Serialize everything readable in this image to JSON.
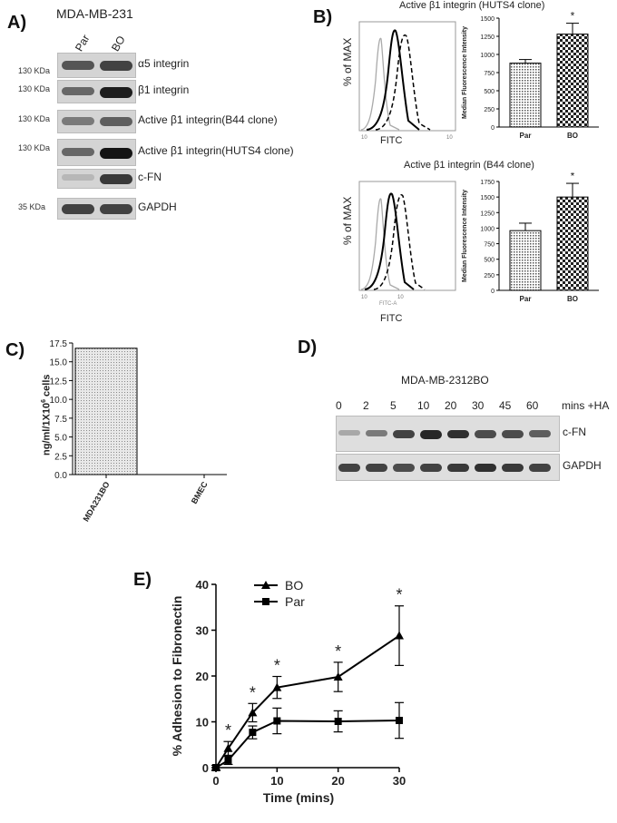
{
  "panel_labels": {
    "a": "A)",
    "b": "B)",
    "c": "C)",
    "d": "D)",
    "e": "E)"
  },
  "panel_a": {
    "cell_line": "MDA-MB-231",
    "lanes": [
      "Par",
      "BO"
    ],
    "rows": [
      {
        "marker": "130 KDa",
        "label": "α5 integrin",
        "bands": [
          0.65,
          0.75
        ]
      },
      {
        "marker": "130 KDa",
        "label": "β1 integrin",
        "bands": [
          0.55,
          0.95
        ]
      },
      {
        "marker": "130 KDa",
        "label": "Active β1 integrin(B44 clone)",
        "bands": [
          0.45,
          0.6
        ]
      },
      {
        "marker": "130 KDa",
        "label": "Active β1 integrin(HUTS4 clone)",
        "bands": [
          0.55,
          1.0
        ]
      },
      {
        "marker": "",
        "label": "c-FN",
        "bands": [
          0.12,
          0.8
        ]
      },
      {
        "marker": "35 KDa",
        "label": "GAPDH",
        "bands": [
          0.75,
          0.75
        ]
      }
    ]
  },
  "panel_b": {
    "top_title": "Active β1 integrin (HUTS4 clone)",
    "bottom_title": "Active β1 integrin (B44 clone)",
    "hist_ylabel": "% of MAX",
    "hist_xlabel": "FITC",
    "hist_sublabel": "FITC-A",
    "bar_ylabel": "Median Fluorescence Intensity",
    "star": "*"
  },
  "panel_c": {
    "ylabel": "ng/ml/1X10",
    "ylabel_sup": "6",
    "ylabel_tail": " cells",
    "star": ""
  },
  "panel_d": {
    "title": "MDA-MB-2312BO",
    "timepoints": [
      "0",
      "2",
      "5",
      "10",
      "20",
      "30",
      "45",
      "60"
    ],
    "unit_label": "mins +HA",
    "rows": [
      {
        "label": "c-FN",
        "bands": [
          0.2,
          0.45,
          0.75,
          0.9,
          0.85,
          0.7,
          0.7,
          0.6
        ]
      },
      {
        "label": "GAPDH",
        "bands": [
          0.75,
          0.75,
          0.7,
          0.75,
          0.8,
          0.85,
          0.8,
          0.75
        ]
      }
    ]
  },
  "chart_data": [
    {
      "type": "bar",
      "id": "b-top",
      "categories": [
        "Par",
        "BO"
      ],
      "values": [
        880,
        1280
      ],
      "errors": [
        50,
        150
      ],
      "ylabel": "Median Fluorescence Intensity",
      "ylim": [
        0,
        1500
      ],
      "yticks": [
        0,
        250,
        500,
        750,
        1000,
        1250,
        1500
      ],
      "annotations": [
        "*"
      ]
    },
    {
      "type": "bar",
      "id": "b-bottom",
      "categories": [
        "Par",
        "BO"
      ],
      "values": [
        960,
        1500
      ],
      "errors": [
        120,
        220
      ],
      "ylabel": "Median Fluorescence Intensity",
      "ylim": [
        0,
        1750
      ],
      "yticks": [
        0,
        250,
        500,
        750,
        1000,
        1250,
        1500,
        1750
      ],
      "annotations": [
        "*"
      ]
    },
    {
      "type": "bar",
      "id": "c",
      "categories": [
        "MDA231BO",
        "BMEC"
      ],
      "values": [
        16.8,
        0
      ],
      "ylabel": "ng/ml/1X10⁶ cells",
      "ylim": [
        0,
        17.5
      ],
      "yticks": [
        "0.0",
        "2.5",
        "5.0",
        "7.5",
        "10.0",
        "12.5",
        "15.0",
        "17.5"
      ]
    },
    {
      "type": "line",
      "id": "e",
      "xlabel": "Time (mins)",
      "ylabel": "% Adhesion to Fibronectin",
      "xlim": [
        0,
        30
      ],
      "ylim": [
        0,
        40
      ],
      "xticks": [
        0,
        10,
        20,
        30
      ],
      "yticks": [
        0,
        10,
        20,
        30,
        40
      ],
      "series": [
        {
          "name": "BO",
          "marker": "triangle",
          "x": [
            0,
            2,
            6,
            10,
            20,
            30
          ],
          "y": [
            0,
            4.2,
            12,
            17.5,
            19.8,
            28.8
          ],
          "err": [
            0.5,
            1.5,
            2,
            2.4,
            3.2,
            6.5
          ]
        },
        {
          "name": "Par",
          "marker": "square",
          "x": [
            0,
            2,
            6,
            10,
            20,
            30
          ],
          "y": [
            0,
            1.6,
            7.7,
            10.2,
            10.1,
            10.3
          ],
          "err": [
            0.5,
            0.9,
            1.4,
            2.8,
            2.3,
            3.9
          ]
        }
      ],
      "annotations": [
        "*",
        "*",
        "*",
        "*",
        "*"
      ]
    }
  ]
}
